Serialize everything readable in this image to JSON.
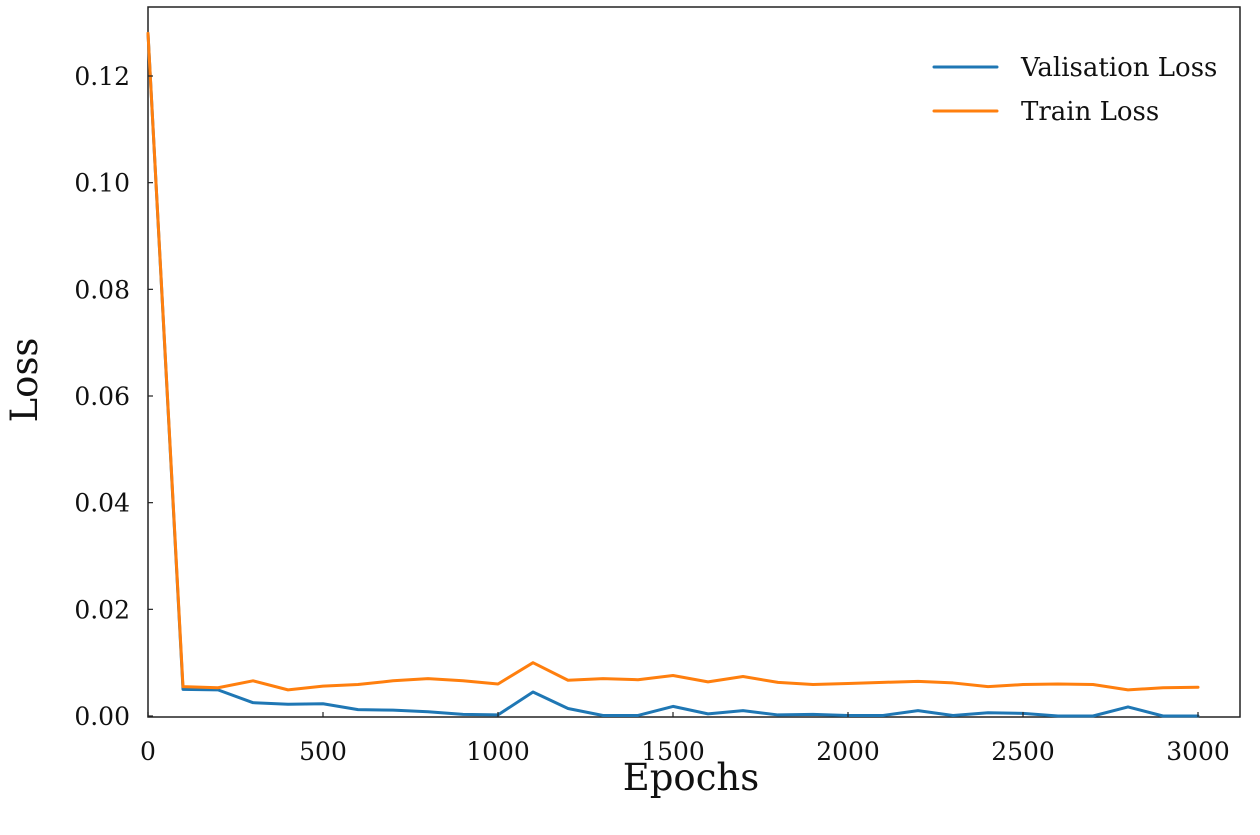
{
  "chart_data": {
    "type": "line",
    "title": "",
    "xlabel": "Epochs",
    "ylabel": "Loss",
    "xlim": [
      0,
      3000
    ],
    "ylim": [
      0,
      0.13
    ],
    "x_ticks": [
      0,
      500,
      1000,
      1500,
      2000,
      2500,
      3000
    ],
    "x_tick_labels": [
      "0",
      "500",
      "1000",
      "1500",
      "2000",
      "2500",
      "3000"
    ],
    "y_ticks": [
      0,
      0.02,
      0.04,
      0.06,
      0.08,
      0.1,
      0.12
    ],
    "y_tick_labels": [
      "0.00",
      "0.02",
      "0.04",
      "0.06",
      "0.08",
      "0.10",
      "0.12"
    ],
    "grid": false,
    "legend_position": "top-right",
    "x": [
      0,
      100,
      200,
      300,
      400,
      500,
      600,
      700,
      800,
      900,
      1000,
      1100,
      1200,
      1300,
      1400,
      1500,
      1600,
      1700,
      1800,
      1900,
      2000,
      2100,
      2200,
      2300,
      2400,
      2500,
      2600,
      2700,
      2800,
      2900,
      3000
    ],
    "series": [
      {
        "name": "Valisation Loss",
        "color": "#1f77b4",
        "values": [
          0.128,
          0.005,
          0.0049,
          0.0025,
          0.0022,
          0.0023,
          0.0012,
          0.0011,
          0.0008,
          0.0003,
          0.0002,
          0.0045,
          0.0014,
          0.0001,
          0.0001,
          0.0018,
          0.0004,
          0.001,
          0.0002,
          0.0003,
          0.0001,
          0.0001,
          0.001,
          0.0001,
          0.0006,
          0.0005,
          0.0,
          0.0,
          0.0017,
          0.0,
          0.0
        ]
      },
      {
        "name": "Train Loss",
        "color": "#ff7f0e",
        "values": [
          0.128,
          0.0055,
          0.0053,
          0.0066,
          0.0049,
          0.0056,
          0.0059,
          0.0066,
          0.007,
          0.0066,
          0.006,
          0.01,
          0.0067,
          0.007,
          0.0068,
          0.0076,
          0.0064,
          0.0074,
          0.0063,
          0.0059,
          0.0061,
          0.0063,
          0.0065,
          0.0062,
          0.0055,
          0.0059,
          0.006,
          0.0059,
          0.0049,
          0.0053,
          0.0054
        ]
      }
    ]
  }
}
